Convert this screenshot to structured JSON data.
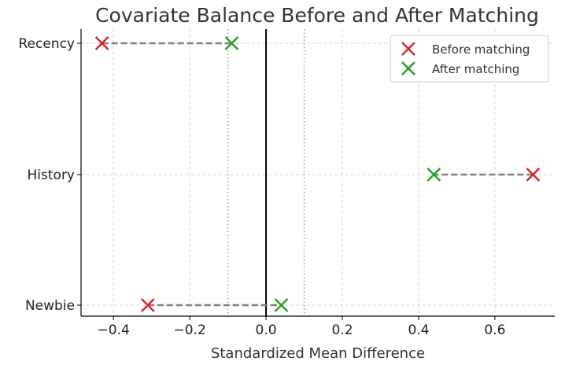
{
  "chart_data": {
    "type": "scatter",
    "title": "Covariate Balance Before and After Matching",
    "xlabel": "Standardized Mean Difference",
    "ylabel": "",
    "categories": [
      "Newbie",
      "History",
      "Recency"
    ],
    "xlim": [
      -0.485,
      0.757
    ],
    "xticks": [
      -0.4,
      -0.2,
      0.0,
      0.2,
      0.4,
      0.6
    ],
    "xtick_labels": [
      "−0.4",
      "−0.2",
      "0.0",
      "0.2",
      "0.4",
      "0.6"
    ],
    "grid": true,
    "reference_lines": {
      "solid": 0.0,
      "dotted": [
        -0.1,
        0.1
      ]
    },
    "legend_position": "top-right",
    "series": [
      {
        "name": "Before matching",
        "color": "#d62728",
        "marker": "x",
        "values": [
          -0.31,
          0.7,
          -0.43
        ]
      },
      {
        "name": "After matching",
        "color": "#2ca02c",
        "marker": "x",
        "values": [
          0.04,
          0.44,
          -0.09
        ]
      }
    ],
    "connector_color": "#808080"
  }
}
